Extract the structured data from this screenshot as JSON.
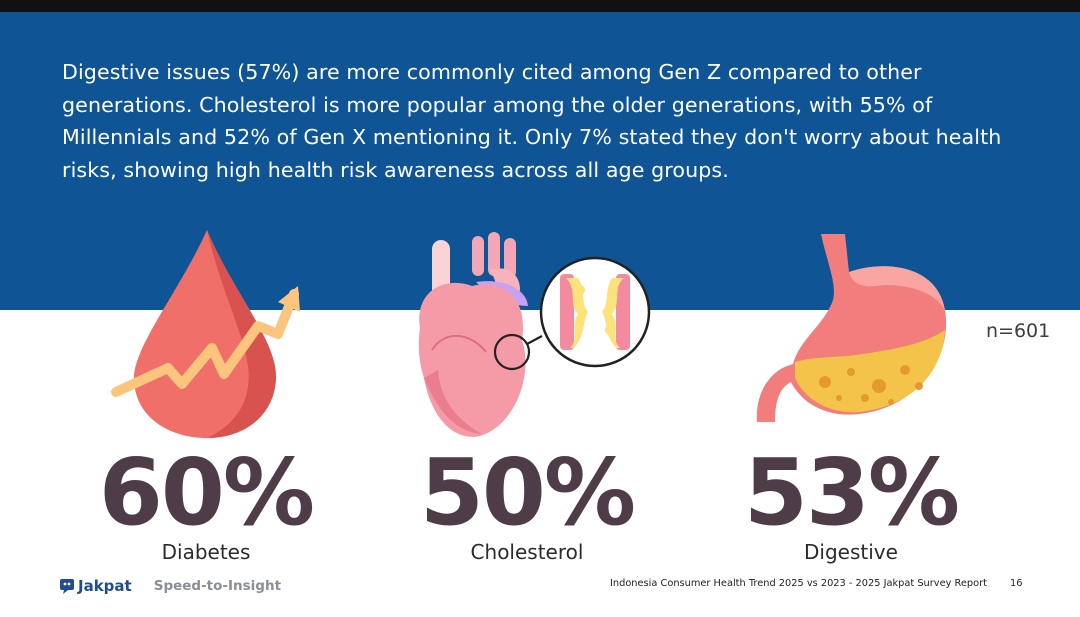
{
  "summary": "Digestive issues (57%) are more commonly cited among Gen Z compared to other generations. Cholesterol is more popular among the older generations, with 55% of Millennials and 52% of Gen X mentioning it. Only 7% stated they don't worry about health risks, showing high health risk awareness across all age groups.",
  "sample_size": "n=601",
  "stats": [
    {
      "value": "60%",
      "label": "Diabetes",
      "icon": "blood-drop-arrow-icon"
    },
    {
      "value": "50%",
      "label": "Cholesterol",
      "icon": "heart-artery-icon"
    },
    {
      "value": "53%",
      "label": "Digestive",
      "icon": "stomach-icon"
    }
  ],
  "footer": {
    "brand": "Jakpat",
    "tagline": "Speed-to-Insight",
    "report": "Indonesia Consumer Health Trend 2025 vs 2023 - 2025 Jakpat Survey Report",
    "page": "16"
  },
  "colors": {
    "band": "#0f5596",
    "stat_text": "#4e3d48",
    "brand": "#1f4d8f"
  }
}
